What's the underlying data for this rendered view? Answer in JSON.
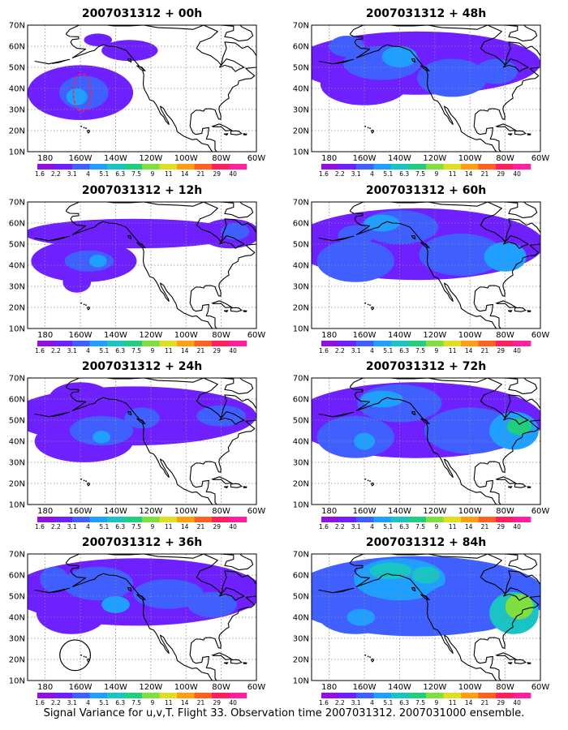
{
  "caption": "Signal Variance for u,v,T. Flight 33. Observation time 2007031312. 2007031000 ensemble.",
  "colors": {
    "levels": [
      "#8f10df",
      "#6f20ff",
      "#3f60ff",
      "#1f9fff",
      "#18c4c4",
      "#1fcf7f",
      "#7fdf3f",
      "#dfdf1f",
      "#ff9f0f",
      "#ff5f1f",
      "#ff1f5f",
      "#ff1f9f"
    ],
    "coast": "#000000",
    "grid": "#8a8a8a",
    "circle": "#000000",
    "marker": "#ff2040"
  },
  "chart_data": [
    {
      "type": "heatmap",
      "title": "2007031312 + 00h",
      "x_ticks": [
        "180",
        "160W",
        "140W",
        "120W",
        "100W",
        "80W",
        "60W"
      ],
      "y_ticks": [
        "10N",
        "20N",
        "30N",
        "40N",
        "50N",
        "60N",
        "70N"
      ],
      "colorbar_labels": [
        "1.6",
        "2.2",
        "3.1",
        "4",
        "5.1",
        "6.3",
        "7.5",
        "9",
        "11",
        "14",
        "21",
        "29",
        "40"
      ],
      "grid": true,
      "coastlines": true,
      "contours": [
        [
          -160,
          38,
          30,
          13,
          1
        ],
        [
          -158,
          38,
          14,
          8,
          2
        ],
        [
          -162,
          36,
          6,
          4,
          3
        ],
        [
          -132,
          58,
          16,
          5,
          1
        ],
        [
          -150,
          63,
          8,
          3,
          1
        ]
      ],
      "marker": [
        -159,
        38,
        5,
        9
      ]
    },
    {
      "type": "heatmap",
      "title": "2007031312 + 12h",
      "x_ticks": [
        "180",
        "160W",
        "140W",
        "120W",
        "100W",
        "80W",
        "60W"
      ],
      "y_ticks": [
        "10N",
        "20N",
        "30N",
        "40N",
        "50N",
        "60N",
        "70N"
      ],
      "colorbar_labels": [
        "1.6",
        "2.2",
        "3.1",
        "4",
        "5.1",
        "6.3",
        "7.5",
        "9",
        "11",
        "14",
        "21",
        "29",
        "40"
      ],
      "grid": true,
      "coastlines": true,
      "contours": [
        [
          -130,
          55,
          62,
          7,
          1
        ],
        [
          -158,
          42,
          30,
          10,
          1
        ],
        [
          -155,
          42,
          14,
          5,
          2
        ],
        [
          -150,
          42,
          5,
          3,
          3
        ],
        [
          -75,
          55,
          17,
          7,
          1
        ],
        [
          -72,
          56,
          8,
          4,
          2
        ],
        [
          -162,
          32,
          8,
          5,
          1
        ]
      ]
    },
    {
      "type": "heatmap",
      "title": "2007031312 + 24h",
      "x_ticks": [
        "180",
        "160W",
        "140W",
        "120W",
        "100W",
        "80W",
        "60W"
      ],
      "y_ticks": [
        "10N",
        "20N",
        "30N",
        "40N",
        "50N",
        "60N",
        "70N"
      ],
      "colorbar_labels": [
        "1.6",
        "2.2",
        "3.1",
        "4",
        "5.1",
        "6.3",
        "7.5",
        "9",
        "11",
        "14",
        "21",
        "29",
        "40"
      ],
      "grid": true,
      "coastlines": true,
      "contours": [
        [
          -130,
          52,
          70,
          14,
          1
        ],
        [
          -158,
          40,
          28,
          10,
          1
        ],
        [
          -160,
          60,
          18,
          8,
          1
        ],
        [
          -148,
          45,
          18,
          7,
          2
        ],
        [
          -148,
          42,
          5,
          3,
          3
        ],
        [
          -125,
          51,
          10,
          5,
          2
        ],
        [
          -80,
          52,
          14,
          5,
          2
        ]
      ]
    },
    {
      "type": "heatmap",
      "title": "2007031312 + 36h",
      "x_ticks": [
        "180",
        "160W",
        "140W",
        "120W",
        "100W",
        "80W",
        "60W"
      ],
      "y_ticks": [
        "10N",
        "20N",
        "30N",
        "40N",
        "50N",
        "60N",
        "70N"
      ],
      "colorbar_labels": [
        "1.6",
        "2.2",
        "3.1",
        "4",
        "5.1",
        "6.3",
        "7.5",
        "9",
        "11",
        "14",
        "21",
        "29",
        "40"
      ],
      "grid": true,
      "coastlines": true,
      "contours": [
        [
          -128,
          52,
          72,
          16,
          1
        ],
        [
          -165,
          42,
          20,
          10,
          1
        ],
        [
          -150,
          56,
          20,
          8,
          2
        ],
        [
          -110,
          51,
          20,
          7,
          2
        ],
        [
          -85,
          46,
          14,
          6,
          2
        ],
        [
          -140,
          46,
          8,
          4,
          3
        ],
        [
          -175,
          58,
          8,
          6,
          2
        ]
      ],
      "circle": [
        -163,
        22,
        5
      ]
    },
    {
      "type": "heatmap",
      "title": "2007031312 + 48h",
      "x_ticks": [
        "180",
        "160W",
        "140W",
        "120W",
        "100W",
        "80W",
        "60W"
      ],
      "y_ticks": [
        "10N",
        "20N",
        "30N",
        "40N",
        "50N",
        "60N",
        "70N"
      ],
      "colorbar_labels": [
        "1.6",
        "2.2",
        "3.1",
        "4",
        "5.1",
        "6.3",
        "7.5",
        "9",
        "11",
        "14",
        "21",
        "29",
        "40"
      ],
      "grid": true,
      "coastlines": true,
      "contours": [
        [
          -130,
          52,
          70,
          15,
          1
        ],
        [
          -160,
          42,
          25,
          10,
          1
        ],
        [
          -150,
          52,
          22,
          8,
          2
        ],
        [
          -110,
          45,
          20,
          9,
          2
        ],
        [
          -140,
          55,
          10,
          5,
          3
        ],
        [
          -85,
          48,
          12,
          6,
          2
        ],
        [
          -170,
          60,
          10,
          5,
          2
        ]
      ]
    },
    {
      "type": "heatmap",
      "title": "2007031312 + 60h",
      "x_ticks": [
        "180",
        "160W",
        "140W",
        "120W",
        "100W",
        "80W",
        "60W"
      ],
      "y_ticks": [
        "10N",
        "20N",
        "30N",
        "40N",
        "50N",
        "60N",
        "70N"
      ],
      "colorbar_labels": [
        "1.6",
        "2.2",
        "3.1",
        "4",
        "5.1",
        "6.3",
        "7.5",
        "9",
        "11",
        "14",
        "21",
        "29",
        "40"
      ],
      "grid": true,
      "coastlines": true,
      "contours": [
        [
          -130,
          50,
          72,
          17,
          1
        ],
        [
          -165,
          42,
          22,
          10,
          2
        ],
        [
          -140,
          58,
          22,
          8,
          2
        ],
        [
          -105,
          45,
          24,
          10,
          2
        ],
        [
          -150,
          60,
          10,
          4,
          3
        ],
        [
          -80,
          44,
          12,
          7,
          3
        ],
        [
          -165,
          54,
          10,
          5,
          2
        ]
      ]
    },
    {
      "type": "heatmap",
      "title": "2007031312 + 72h",
      "x_ticks": [
        "180",
        "160W",
        "140W",
        "120W",
        "100W",
        "80W",
        "60W"
      ],
      "y_ticks": [
        "10N",
        "20N",
        "30N",
        "40N",
        "50N",
        "60N",
        "70N"
      ],
      "colorbar_labels": [
        "1.6",
        "2.2",
        "3.1",
        "4",
        "5.1",
        "6.3",
        "7.5",
        "9",
        "11",
        "14",
        "21",
        "29",
        "40"
      ],
      "grid": true,
      "coastlines": true,
      "contours": [
        [
          -130,
          50,
          72,
          18,
          1
        ],
        [
          -165,
          42,
          22,
          10,
          2
        ],
        [
          -140,
          58,
          24,
          9,
          2
        ],
        [
          -100,
          45,
          26,
          11,
          2
        ],
        [
          -150,
          60,
          12,
          4,
          3
        ],
        [
          -75,
          45,
          14,
          9,
          3
        ],
        [
          -72,
          47,
          7,
          4,
          5
        ],
        [
          -160,
          40,
          6,
          4,
          3
        ]
      ]
    },
    {
      "type": "heatmap",
      "title": "2007031312 + 84h",
      "x_ticks": [
        "180",
        "160W",
        "140W",
        "120W",
        "100W",
        "80W",
        "60W"
      ],
      "y_ticks": [
        "10N",
        "20N",
        "30N",
        "40N",
        "50N",
        "60N",
        "70N"
      ],
      "colorbar_labels": [
        "1.6",
        "2.2",
        "3.1",
        "4",
        "5.1",
        "6.3",
        "7.5",
        "9",
        "11",
        "14",
        "21",
        "29",
        "40"
      ],
      "grid": true,
      "coastlines": true,
      "contours": [
        [
          -130,
          50,
          74,
          19,
          2
        ],
        [
          -165,
          42,
          22,
          10,
          2
        ],
        [
          -140,
          58,
          26,
          10,
          3
        ],
        [
          -100,
          45,
          28,
          12,
          2
        ],
        [
          -145,
          62,
          12,
          4,
          4
        ],
        [
          -75,
          42,
          14,
          10,
          4
        ],
        [
          -72,
          45,
          8,
          6,
          6
        ],
        [
          -162,
          40,
          8,
          4,
          3
        ],
        [
          -125,
          60,
          8,
          4,
          4
        ]
      ]
    }
  ]
}
